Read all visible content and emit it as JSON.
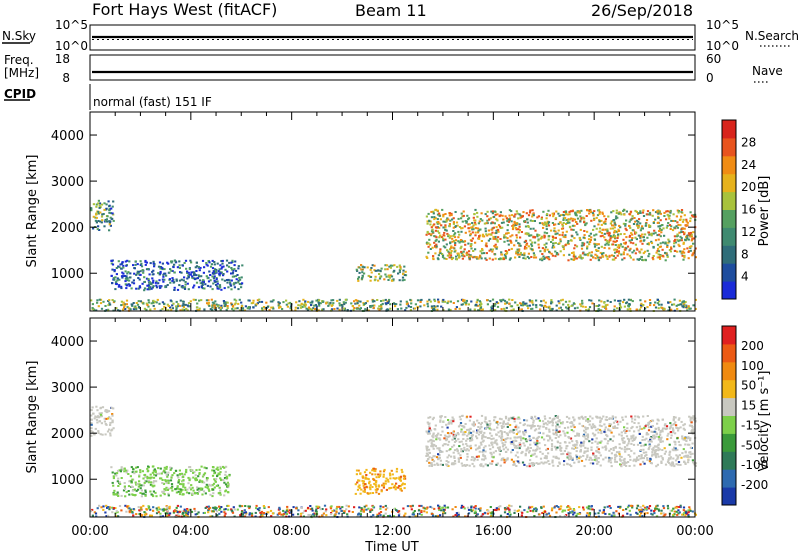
{
  "header": {
    "station": "Fort Hays West (fitACF)",
    "beam": "Beam 11",
    "date": "26/Sep/2018"
  },
  "status_panels": {
    "nsky_label": "N.Sky",
    "nsky_ticks": [
      "10^5",
      "10^0"
    ],
    "nsearch_label": "N.Search",
    "nsearch_ticks": [
      "10^5",
      "10^0"
    ],
    "freq_label_1": "Freq.",
    "freq_label_2": "[MHz]",
    "freq_ticks": [
      "18",
      "8"
    ],
    "nave_label": "Nave",
    "nave_ticks": [
      "60",
      "0"
    ],
    "cpid_label": "CPID",
    "cpid_text": "normal (fast) 151 IF"
  },
  "x_axis": {
    "label": "Time UT",
    "ticks": [
      "00:00",
      "04:00",
      "08:00",
      "12:00",
      "16:00",
      "20:00",
      "00:00"
    ]
  },
  "chart_data": [
    {
      "type": "heatmap",
      "panel": "power",
      "ylabel": "Slant Range [km]",
      "yticks": [
        "4000",
        "3000",
        "2000",
        "1000"
      ],
      "ylim": [
        180,
        4500
      ],
      "xlim_hours": [
        0,
        24
      ],
      "colorbar_label": "Power [dB]",
      "colorbar_ticks": [
        "28",
        "24",
        "20",
        "16",
        "12",
        "8",
        "4"
      ],
      "colorbar_colors": [
        "#1a2bd8",
        "#1e4d9e",
        "#2f6d79",
        "#3f8a70",
        "#55a060",
        "#a8c23c",
        "#e6b21c",
        "#f08c14",
        "#e8541e",
        "#d8241c"
      ],
      "regions": [
        {
          "t_start": 0.0,
          "t_end": 0.9,
          "r_low": 1950,
          "r_high": 2600,
          "level": 0.35
        },
        {
          "t_start": 0.8,
          "t_end": 6.0,
          "r_low": 650,
          "r_high": 1300,
          "level": 0.2
        },
        {
          "t_start": 10.5,
          "t_end": 12.5,
          "r_low": 850,
          "r_high": 1200,
          "level": 0.5
        },
        {
          "t_start": 13.3,
          "t_end": 24.0,
          "r_low": 1300,
          "r_high": 2400,
          "level": 0.6
        },
        {
          "t_start": 0.0,
          "t_end": 24.0,
          "r_low": 200,
          "r_high": 450,
          "level": 0.45
        }
      ]
    },
    {
      "type": "heatmap",
      "panel": "velocity",
      "ylabel": "Slant Range [km]",
      "yticks": [
        "4000",
        "3000",
        "2000",
        "1000"
      ],
      "ylim": [
        180,
        4500
      ],
      "xlim_hours": [
        0,
        24
      ],
      "colorbar_label": "Velocity [m s⁻¹]",
      "colorbar_ticks": [
        "200",
        "100",
        "50",
        "15",
        "-15",
        "-50",
        "-100",
        "-200"
      ],
      "colorbar_colors": [
        "#1a3aa8",
        "#2e6ab0",
        "#2f7a58",
        "#3a9a3a",
        "#7dd04a",
        "#c8c8c0",
        "#f2b81a",
        "#f08a10",
        "#ec5a14",
        "#e02020"
      ],
      "regions": [
        {
          "t_start": 0.0,
          "t_end": 0.9,
          "r_low": 1950,
          "r_high": 2600,
          "level": "grey"
        },
        {
          "t_start": 0.8,
          "t_end": 5.5,
          "r_low": 650,
          "r_high": 1300,
          "level": "green"
        },
        {
          "t_start": 10.5,
          "t_end": 12.5,
          "r_low": 700,
          "r_high": 1250,
          "level": "orange"
        },
        {
          "t_start": 13.3,
          "t_end": 24.0,
          "r_low": 1300,
          "r_high": 2400,
          "level": "grey"
        },
        {
          "t_start": 0.0,
          "t_end": 24.0,
          "r_low": 200,
          "r_high": 450,
          "level": "mixed"
        }
      ]
    }
  ]
}
